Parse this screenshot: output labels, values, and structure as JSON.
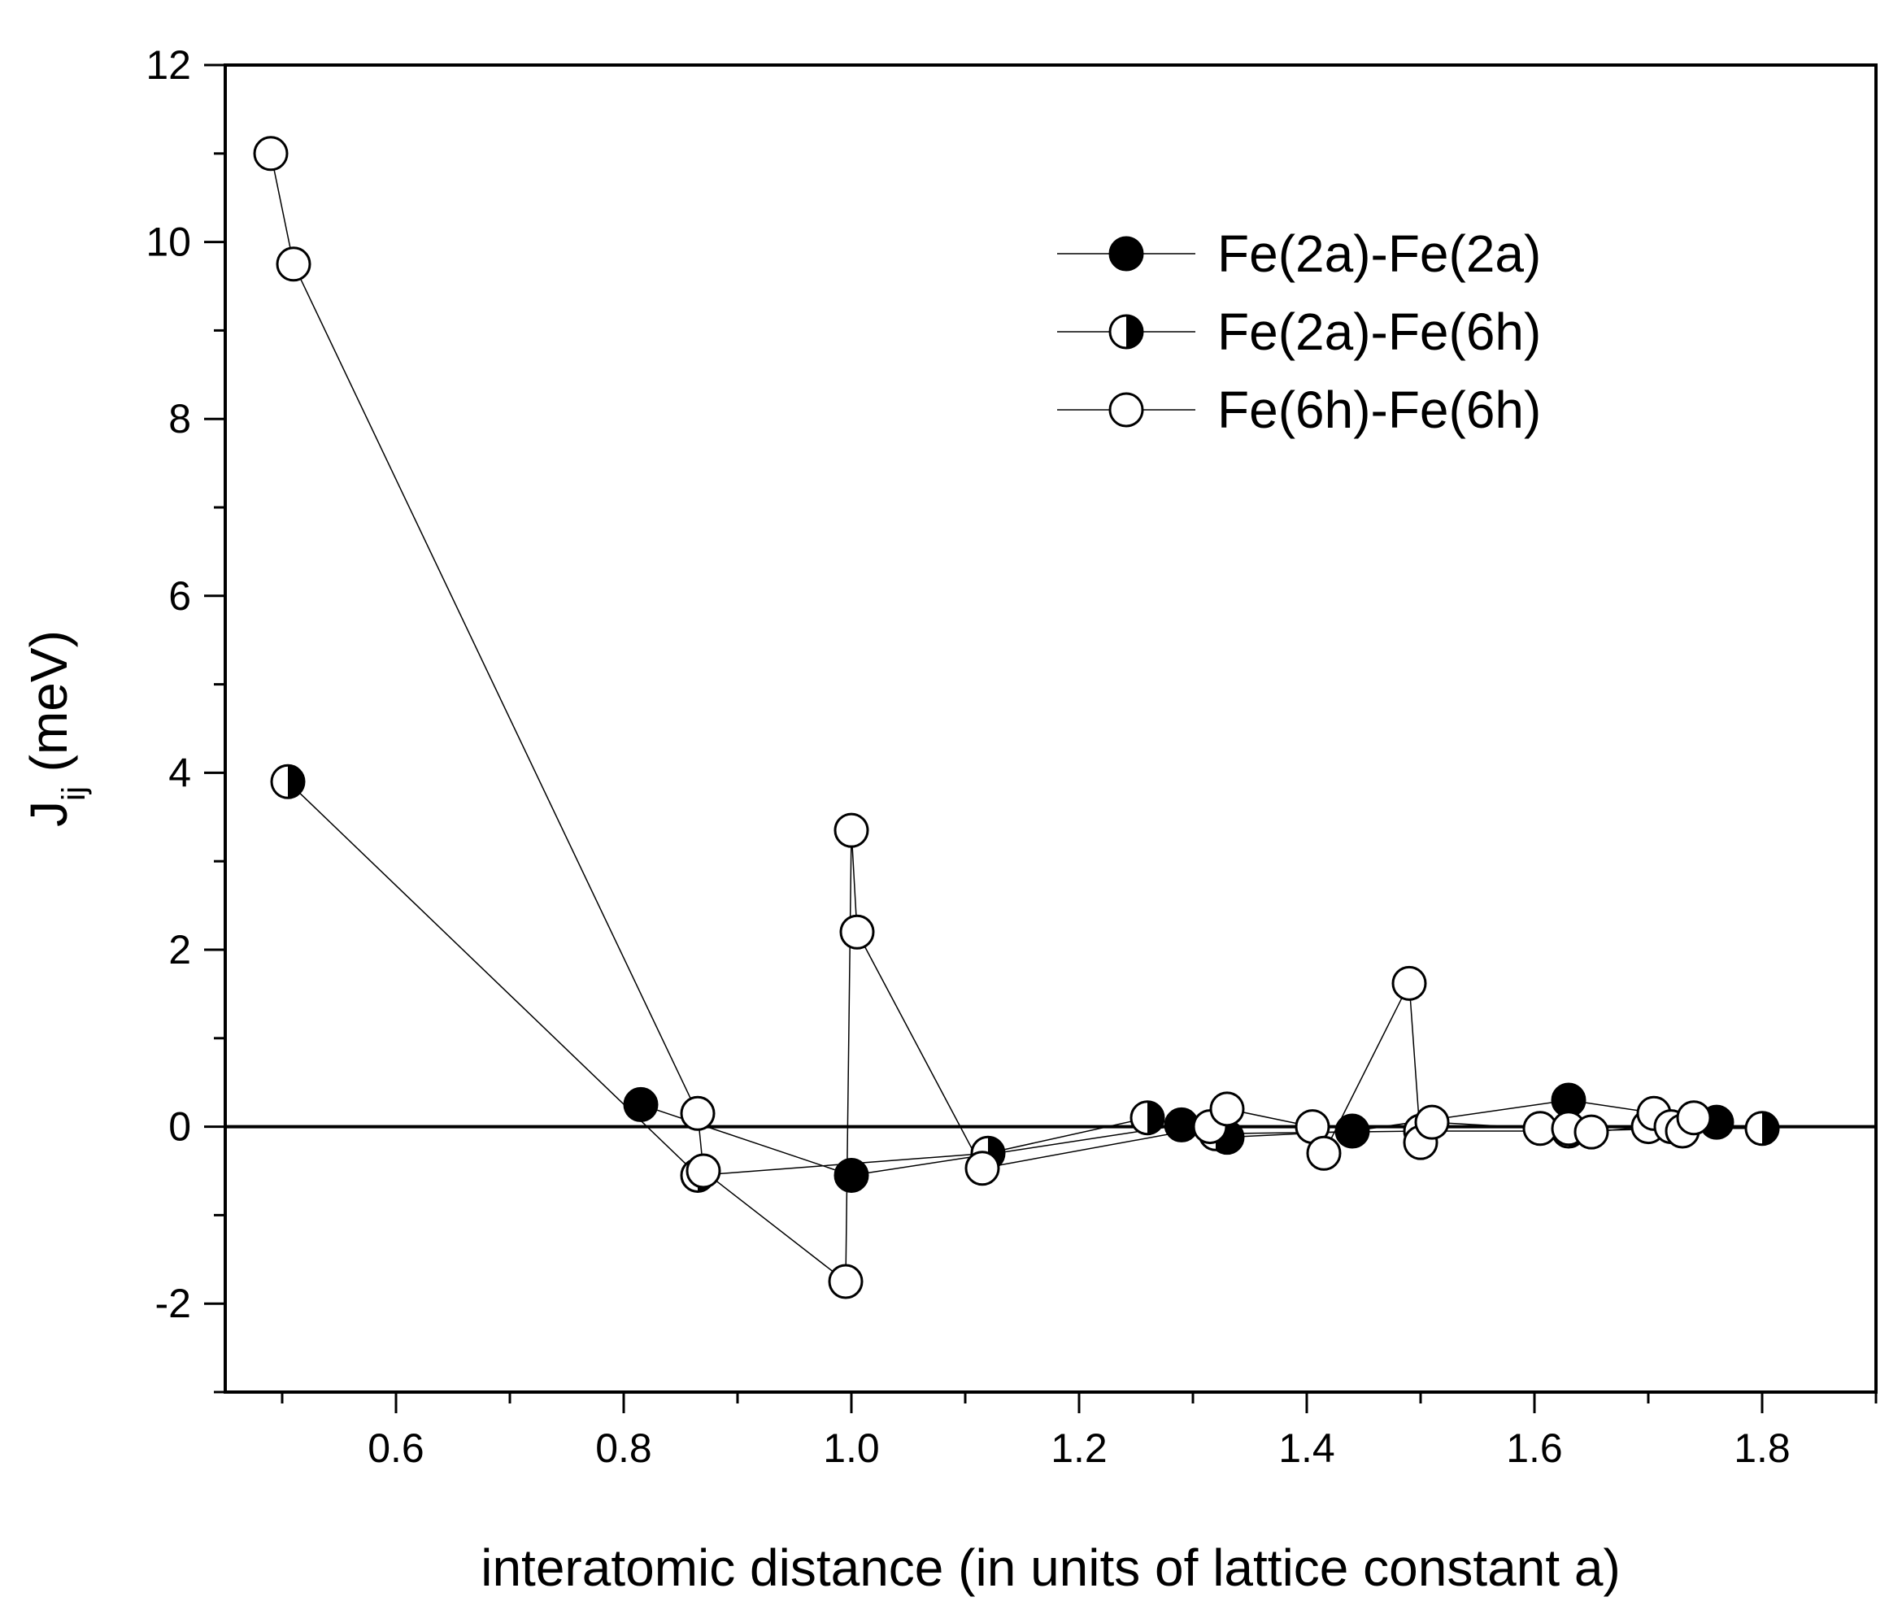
{
  "chart_data": {
    "type": "scatter",
    "title": "",
    "xlabel": "interatomic distance (in units of lattice constant a)",
    "ylabel": {
      "main": "J",
      "sub": "ij",
      "unit": " (meV)"
    },
    "xlim": [
      0.45,
      1.9
    ],
    "ylim": [
      -3,
      12
    ],
    "x_ticks": [
      0.6,
      0.8,
      1.0,
      1.2,
      1.4,
      1.6,
      1.8
    ],
    "x_tick_labels": [
      "0.6",
      "0.8",
      "1.0",
      "1.2",
      "1.4",
      "1.6",
      "1.8"
    ],
    "y_ticks": [
      -2,
      0,
      2,
      4,
      6,
      8,
      10,
      12
    ],
    "y_tick_labels": [
      "-2",
      "0",
      "2",
      "4",
      "6",
      "8",
      "10",
      "12"
    ],
    "zero_line": true,
    "grid": false,
    "legend_position": "top-right",
    "series": [
      {
        "name": "Fe(2a)-Fe(2a)",
        "marker": "filled",
        "x": [
          0.815,
          1.0,
          1.29,
          1.33,
          1.44,
          1.63,
          1.76
        ],
        "y": [
          0.25,
          -0.55,
          0.02,
          -0.12,
          -0.05,
          0.3,
          0.05
        ]
      },
      {
        "name": "Fe(2a)-Fe(6h)",
        "marker": "half",
        "x": [
          0.505,
          0.865,
          1.12,
          1.26,
          1.32,
          1.5,
          1.63,
          1.73,
          1.8
        ],
        "y": [
          3.9,
          -0.55,
          -0.3,
          0.1,
          -0.08,
          -0.05,
          -0.05,
          -0.02,
          -0.02
        ]
      },
      {
        "name": "Fe(6h)-Fe(6h)",
        "marker": "open",
        "x": [
          0.49,
          0.51,
          0.865,
          0.87,
          0.995,
          1.0,
          1.005,
          1.115,
          1.315,
          1.33,
          1.405,
          1.415,
          1.49,
          1.5,
          1.51,
          1.605,
          1.63,
          1.65,
          1.7,
          1.705,
          1.72,
          1.73,
          1.74
        ],
        "y": [
          11.0,
          9.75,
          0.15,
          -0.5,
          -1.75,
          3.35,
          2.2,
          -0.47,
          0.0,
          0.2,
          0.0,
          -0.3,
          1.62,
          -0.18,
          0.05,
          -0.02,
          -0.02,
          -0.06,
          0.0,
          0.15,
          0.0,
          -0.05,
          0.1
        ]
      }
    ]
  }
}
